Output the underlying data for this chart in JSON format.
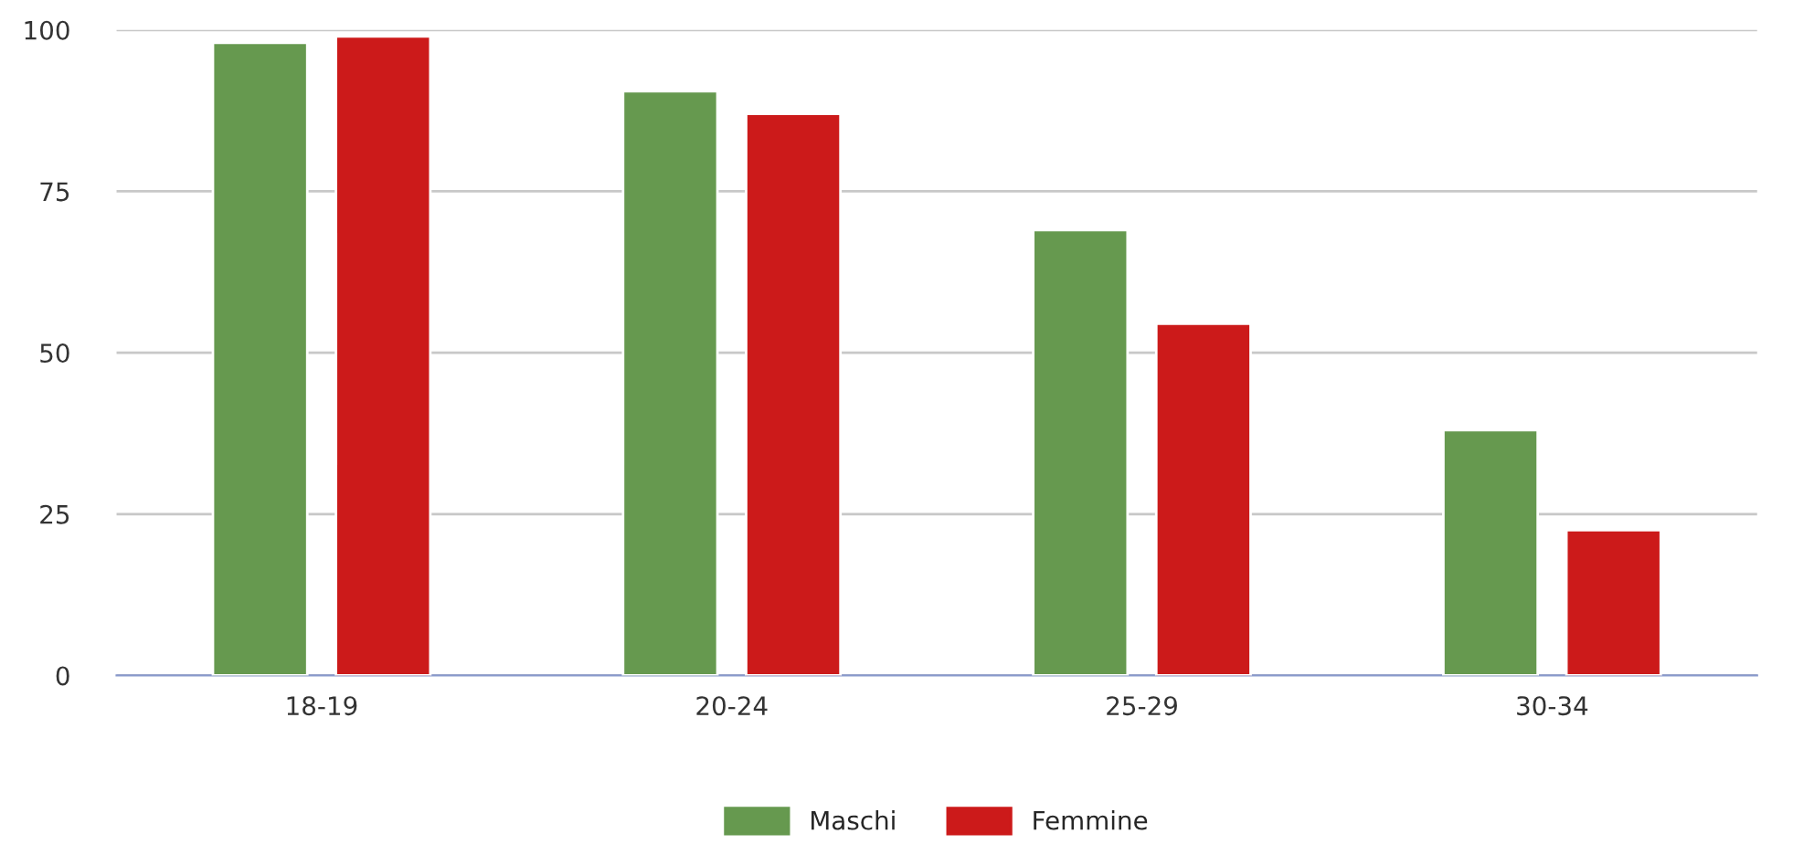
{
  "chart_data": {
    "type": "bar",
    "categories": [
      "18-19",
      "20-24",
      "25-29",
      "30-34"
    ],
    "series": [
      {
        "name": "Maschi",
        "color": "#66994f",
        "values": [
          98,
          90.5,
          69,
          38
        ]
      },
      {
        "name": "Femmine",
        "color": "#cc1a1a",
        "values": [
          99,
          87,
          54.5,
          22.5
        ]
      }
    ],
    "ylim": [
      0,
      100
    ],
    "yticks": [
      0,
      25,
      50,
      75,
      100
    ],
    "grid": "y",
    "legend": "bottom"
  }
}
